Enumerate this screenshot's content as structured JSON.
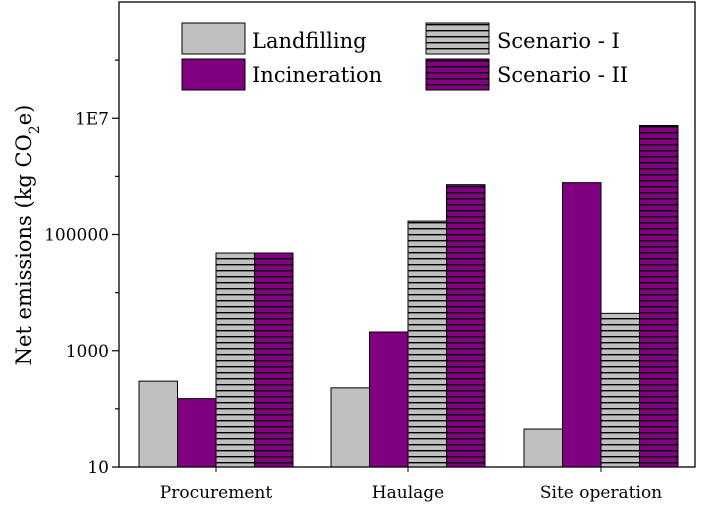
{
  "chart_data": {
    "type": "bar",
    "scale": "log",
    "categories": [
      "Procurement",
      "Haulage",
      "Site operation"
    ],
    "series": [
      {
        "name": "Landfilling",
        "values": [
          300,
          230,
          45
        ],
        "color": "#c0c0c0",
        "pattern": "solid"
      },
      {
        "name": "Incineration",
        "values": [
          150,
          2100,
          780000
        ],
        "color": "#800080",
        "pattern": "solid"
      },
      {
        "name": "Scenario - I",
        "values": [
          48000,
          170000,
          4400
        ],
        "color": "#c0c0c0",
        "pattern": "horizontal-lines"
      },
      {
        "name": "Scenario - II",
        "values": [
          48000,
          720000,
          7500000
        ],
        "color": "#800080",
        "pattern": "horizontal-lines"
      }
    ],
    "ylabel_main": "Net emissions (kg CO",
    "ylabel_sub": "2",
    "ylabel_end": "e)",
    "ylim": [
      10,
      1000000000
    ],
    "yticks": [
      {
        "value": 10,
        "label": "10"
      },
      {
        "value": 1000,
        "label": "1000"
      },
      {
        "value": 100000,
        "label": "100000"
      },
      {
        "value": 10000000,
        "label": "1E7"
      }
    ],
    "legend_position": "top"
  }
}
